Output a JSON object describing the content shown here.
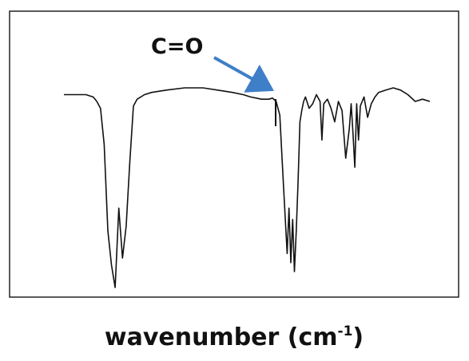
{
  "chart_data": {
    "type": "line",
    "title": "",
    "xlabel_main": "wavenumber  (cm",
    "xlabel_sup": "-1",
    "xlabel_tail": ")",
    "ylabel": "",
    "grid": false,
    "legend": "none",
    "annotation": {
      "text": "C=O",
      "color": "#3f7fc8"
    },
    "series": [
      {
        "line_color": "#111111",
        "x": [
          0,
          3,
          6,
          8,
          9,
          10,
          11,
          12,
          13,
          14,
          15,
          16,
          17,
          18,
          19,
          20,
          21,
          22,
          24,
          28,
          33,
          38,
          42,
          46,
          49,
          51,
          54,
          56,
          57,
          58,
          59,
          60,
          61,
          61.5,
          62,
          62.5,
          63,
          63.5,
          64,
          64.5,
          65,
          65.5,
          66,
          67,
          68,
          69,
          70,
          70.5,
          71,
          72,
          73,
          74,
          75,
          76,
          77,
          78,
          78.5,
          79,
          79.5,
          80,
          80.5,
          81,
          82,
          83,
          84,
          85,
          86,
          88,
          90,
          92,
          94,
          96,
          98,
          100
        ],
        "y": [
          100,
          100,
          100,
          99,
          97,
          94,
          78,
          40,
          25,
          15,
          50,
          28,
          42,
          70,
          95,
          98,
          99,
          100,
          101,
          102,
          103,
          103,
          102,
          101,
          100,
          99,
          98,
          98,
          98.5,
          97,
          91,
          60,
          30,
          50,
          26,
          45,
          22,
          40,
          62,
          88,
          93,
          97,
          99,
          94,
          96,
          100,
          97,
          80,
          96,
          98,
          94,
          88,
          97,
          93,
          72,
          85,
          96,
          83,
          68,
          96,
          80,
          95,
          99,
          90,
          96,
          99,
          101,
          102,
          103,
          102,
          100,
          97,
          98,
          97
        ]
      }
    ]
  }
}
